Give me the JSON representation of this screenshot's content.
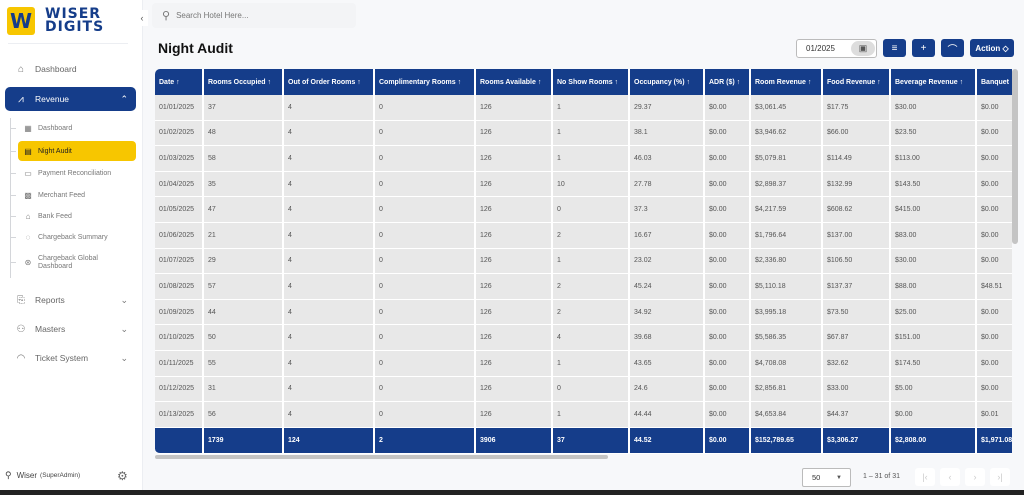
{
  "brand": {
    "mark": "W",
    "line1": "WISER",
    "line2": "DIGITS"
  },
  "sidebar": {
    "collapse_icon": "‹",
    "items": [
      {
        "label": "Dashboard",
        "icon": "home-icon"
      },
      {
        "label": "Revenue",
        "icon": "chart-icon",
        "active": true
      },
      {
        "label": "Reports",
        "icon": "report-icon"
      },
      {
        "label": "Masters",
        "icon": "hierarchy-icon"
      },
      {
        "label": "Ticket System",
        "icon": "headset-icon"
      }
    ],
    "sub_items": [
      {
        "label": "Dashboard",
        "icon": "grid-icon"
      },
      {
        "label": "Night Audit",
        "icon": "clipboard-icon",
        "active": true
      },
      {
        "label": "Payment Reconciliation",
        "icon": "card-icon"
      },
      {
        "label": "Merchant Feed",
        "icon": "building-icon"
      },
      {
        "label": "Bank Feed",
        "icon": "bank-icon"
      },
      {
        "label": "Chargeback Summary",
        "icon": "shield-icon"
      },
      {
        "label": "Chargeback Global Dashboard",
        "icon": "dollar-circle-icon"
      }
    ],
    "user": {
      "name": "Wiser",
      "role": "(SuperAdmin)"
    }
  },
  "search": {
    "placeholder": "Search Hotel Here..."
  },
  "page": {
    "title": "Night Audit"
  },
  "toolbar": {
    "date_value": "01/2025",
    "action_label": "Action ◇"
  },
  "table": {
    "columns": [
      "Date ↑",
      "Rooms Occupied ↑",
      "Out of Order Rooms ↑",
      "Complimentary Rooms ↑",
      "Rooms Available ↑",
      "No Show Rooms ↑",
      "Occupancy (%) ↑",
      "ADR ($) ↑",
      "Room Revenue ↑",
      "Food Revenue ↑",
      "Beverage Revenue ↑",
      "Banquet"
    ],
    "rows": [
      [
        "01/01/2025",
        "37",
        "4",
        "0",
        "126",
        "1",
        "29.37",
        "$0.00",
        "$3,061.45",
        "$17.75",
        "$30.00",
        "$0.00"
      ],
      [
        "01/02/2025",
        "48",
        "4",
        "0",
        "126",
        "1",
        "38.1",
        "$0.00",
        "$3,946.62",
        "$66.00",
        "$23.50",
        "$0.00"
      ],
      [
        "01/03/2025",
        "58",
        "4",
        "0",
        "126",
        "1",
        "46.03",
        "$0.00",
        "$5,079.81",
        "$114.49",
        "$113.00",
        "$0.00"
      ],
      [
        "01/04/2025",
        "35",
        "4",
        "0",
        "126",
        "10",
        "27.78",
        "$0.00",
        "$2,898.37",
        "$132.99",
        "$143.50",
        "$0.00"
      ],
      [
        "01/05/2025",
        "47",
        "4",
        "0",
        "126",
        "0",
        "37.3",
        "$0.00",
        "$4,217.59",
        "$608.62",
        "$415.00",
        "$0.00"
      ],
      [
        "01/06/2025",
        "21",
        "4",
        "0",
        "126",
        "2",
        "16.67",
        "$0.00",
        "$1,796.64",
        "$137.00",
        "$83.00",
        "$0.00"
      ],
      [
        "01/07/2025",
        "29",
        "4",
        "0",
        "126",
        "1",
        "23.02",
        "$0.00",
        "$2,336.80",
        "$106.50",
        "$30.00",
        "$0.00"
      ],
      [
        "01/08/2025",
        "57",
        "4",
        "0",
        "126",
        "2",
        "45.24",
        "$0.00",
        "$5,110.18",
        "$137.37",
        "$88.00",
        "$48.51"
      ],
      [
        "01/09/2025",
        "44",
        "4",
        "0",
        "126",
        "2",
        "34.92",
        "$0.00",
        "$3,995.18",
        "$73.50",
        "$25.00",
        "$0.00"
      ],
      [
        "01/10/2025",
        "50",
        "4",
        "0",
        "126",
        "4",
        "39.68",
        "$0.00",
        "$5,586.35",
        "$67.87",
        "$151.00",
        "$0.00"
      ],
      [
        "01/11/2025",
        "55",
        "4",
        "0",
        "126",
        "1",
        "43.65",
        "$0.00",
        "$4,708.08",
        "$32.62",
        "$174.50",
        "$0.00"
      ],
      [
        "01/12/2025",
        "31",
        "4",
        "0",
        "126",
        "0",
        "24.6",
        "$0.00",
        "$2,856.81",
        "$33.00",
        "$5.00",
        "$0.00"
      ],
      [
        "01/13/2025",
        "56",
        "4",
        "0",
        "126",
        "1",
        "44.44",
        "$0.00",
        "$4,653.84",
        "$44.37",
        "$0.00",
        "$0.01"
      ]
    ],
    "totals": [
      "",
      "1739",
      "124",
      "2",
      "3906",
      "37",
      "44.52",
      "$0.00",
      "$152,789.65",
      "$3,306.27",
      "$2,808.00",
      "$1,971.08"
    ]
  },
  "pagination": {
    "page_size": "50",
    "range": "1 – 31 of 31"
  }
}
